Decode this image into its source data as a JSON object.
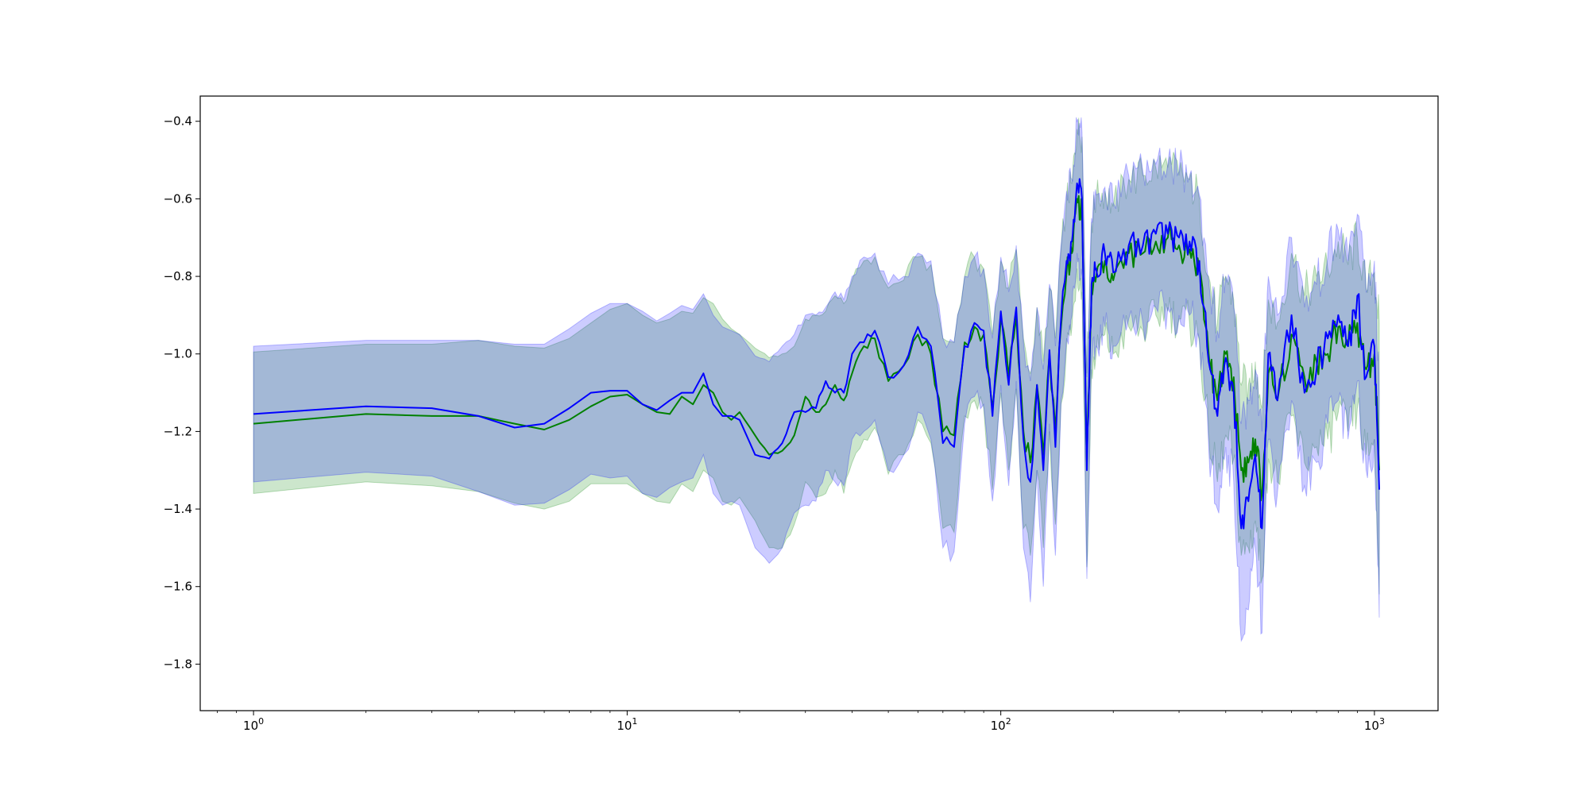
{
  "chart_data": {
    "type": "line",
    "title": "",
    "xlabel": "",
    "ylabel": "",
    "x_scale": "log",
    "xlim": [
      0.72,
      1480
    ],
    "ylim": [
      -1.92,
      -0.335
    ],
    "grid": false,
    "legend": "none",
    "x_ticks": [
      {
        "value": 1,
        "base": "10",
        "exp": "0"
      },
      {
        "value": 10,
        "base": "10",
        "exp": "1"
      },
      {
        "value": 100,
        "base": "10",
        "exp": "2"
      },
      {
        "value": 1000,
        "base": "10",
        "exp": "3"
      }
    ],
    "y_ticks": [
      {
        "value": -0.4,
        "label": "−0.4"
      },
      {
        "value": -0.6,
        "label": "−0.6"
      },
      {
        "value": -0.8,
        "label": "−0.8"
      },
      {
        "value": -1.0,
        "label": "−1.0"
      },
      {
        "value": -1.2,
        "label": "−1.2"
      },
      {
        "value": -1.4,
        "label": "−1.4"
      },
      {
        "value": -1.6,
        "label": "−1.6"
      },
      {
        "value": -1.8,
        "label": "−1.8"
      }
    ],
    "series": [
      {
        "color": "#008000",
        "band_color": "#008000",
        "band_opacity": 0.2,
        "x": [
          1,
          2,
          3,
          4,
          5,
          6,
          7,
          8,
          9,
          10,
          11,
          12,
          13,
          14,
          15,
          16,
          17,
          18,
          19,
          20,
          22,
          24,
          26,
          28,
          30,
          32,
          34,
          36,
          38,
          40,
          43,
          46,
          50,
          55,
          60,
          65,
          70,
          75,
          80,
          85,
          90,
          95,
          100,
          105,
          110,
          115,
          120,
          125,
          130,
          135,
          140,
          145,
          150,
          155,
          160,
          165,
          170,
          175,
          180,
          190,
          200,
          220,
          240,
          260,
          280,
          300,
          320,
          340,
          360,
          380,
          400,
          420,
          440,
          460,
          480,
          500,
          520,
          550,
          600,
          650,
          700,
          750,
          800,
          850,
          900,
          950,
          1000,
          1030
        ],
        "y": [
          -1.18,
          -1.155,
          -1.16,
          -1.16,
          -1.18,
          -1.195,
          -1.17,
          -1.135,
          -1.11,
          -1.105,
          -1.13,
          -1.15,
          -1.155,
          -1.11,
          -1.13,
          -1.08,
          -1.1,
          -1.15,
          -1.17,
          -1.15,
          -1.21,
          -1.26,
          -1.25,
          -1.21,
          -1.11,
          -1.15,
          -1.13,
          -1.08,
          -1.12,
          -1.05,
          -0.98,
          -0.96,
          -1.07,
          -1.03,
          -0.95,
          -1.0,
          -1.2,
          -1.21,
          -0.97,
          -0.93,
          -0.95,
          -1.14,
          -0.91,
          -1.06,
          -0.9,
          -1.2,
          -1.28,
          -1.08,
          -1.26,
          -1.0,
          -1.2,
          -0.93,
          -0.79,
          -0.74,
          -0.6,
          -0.64,
          -1.28,
          -0.85,
          -0.8,
          -0.76,
          -0.81,
          -0.74,
          -0.74,
          -0.71,
          -0.7,
          -0.72,
          -0.73,
          -0.78,
          -1.0,
          -1.12,
          -1.0,
          -1.06,
          -1.3,
          -1.28,
          -1.22,
          -1.36,
          -1.05,
          -1.12,
          -0.95,
          -1.06,
          -1.02,
          -1.0,
          -0.93,
          -0.98,
          -0.92,
          -1.04,
          -1.0,
          -1.3
        ],
        "upper": [
          -0.995,
          -0.975,
          -0.975,
          -0.965,
          -0.98,
          -0.985,
          -0.96,
          -0.92,
          -0.885,
          -0.87,
          -0.9,
          -0.92,
          -0.91,
          -0.89,
          -0.895,
          -0.855,
          -0.87,
          -0.91,
          -0.935,
          -0.95,
          -0.985,
          -1.01,
          -1.0,
          -0.98,
          -0.91,
          -0.9,
          -0.89,
          -0.85,
          -0.87,
          -0.81,
          -0.76,
          -0.75,
          -0.83,
          -0.81,
          -0.75,
          -0.77,
          -0.96,
          -0.97,
          -0.8,
          -0.75,
          -0.78,
          -0.95,
          -0.76,
          -0.83,
          -0.73,
          -0.96,
          -1.05,
          -0.88,
          -1.02,
          -0.83,
          -0.96,
          -0.73,
          -0.6,
          -0.56,
          -0.42,
          -0.44,
          -1.05,
          -0.66,
          -0.6,
          -0.58,
          -0.62,
          -0.55,
          -0.54,
          -0.52,
          -0.52,
          -0.54,
          -0.55,
          -0.6,
          -0.8,
          -0.92,
          -0.8,
          -0.86,
          -1.08,
          -1.08,
          -1.02,
          -1.14,
          -0.86,
          -0.92,
          -0.74,
          -0.85,
          -0.8,
          -0.78,
          -0.71,
          -0.77,
          -0.7,
          -0.83,
          -0.79,
          -0.92
        ],
        "lower": [
          -1.36,
          -1.33,
          -1.34,
          -1.355,
          -1.385,
          -1.4,
          -1.38,
          -1.335,
          -1.335,
          -1.335,
          -1.36,
          -1.38,
          -1.385,
          -1.335,
          -1.355,
          -1.3,
          -1.32,
          -1.38,
          -1.39,
          -1.37,
          -1.43,
          -1.5,
          -1.5,
          -1.44,
          -1.33,
          -1.37,
          -1.36,
          -1.3,
          -1.36,
          -1.28,
          -1.22,
          -1.19,
          -1.31,
          -1.26,
          -1.17,
          -1.23,
          -1.45,
          -1.46,
          -1.16,
          -1.12,
          -1.14,
          -1.35,
          -1.1,
          -1.3,
          -1.09,
          -1.45,
          -1.52,
          -1.3,
          -1.5,
          -1.2,
          -1.44,
          -1.13,
          -0.98,
          -0.93,
          -0.78,
          -0.84,
          -1.55,
          -1.04,
          -1.0,
          -0.95,
          -1.0,
          -0.93,
          -0.94,
          -0.9,
          -0.89,
          -0.91,
          -0.92,
          -0.97,
          -1.2,
          -1.33,
          -1.21,
          -1.27,
          -1.52,
          -1.5,
          -1.43,
          -1.58,
          -1.27,
          -1.33,
          -1.16,
          -1.28,
          -1.24,
          -1.22,
          -1.15,
          -1.2,
          -1.14,
          -1.26,
          -1.22,
          -1.62
        ]
      },
      {
        "color": "#0000ff",
        "band_color": "#0000ff",
        "band_opacity": 0.2,
        "x": [
          1,
          2,
          3,
          4,
          5,
          6,
          7,
          8,
          9,
          10,
          11,
          12,
          13,
          14,
          15,
          16,
          17,
          18,
          19,
          20,
          22,
          24,
          26,
          28,
          30,
          32,
          34,
          36,
          38,
          40,
          43,
          46,
          50,
          55,
          60,
          65,
          70,
          75,
          80,
          85,
          90,
          95,
          100,
          105,
          110,
          115,
          120,
          125,
          130,
          135,
          140,
          145,
          150,
          155,
          160,
          165,
          170,
          175,
          180,
          190,
          200,
          220,
          240,
          260,
          280,
          300,
          320,
          340,
          360,
          380,
          400,
          420,
          440,
          460,
          480,
          500,
          520,
          550,
          600,
          650,
          700,
          750,
          800,
          850,
          900,
          950,
          1000,
          1030
        ],
        "y": [
          -1.155,
          -1.135,
          -1.14,
          -1.16,
          -1.19,
          -1.18,
          -1.14,
          -1.1,
          -1.095,
          -1.095,
          -1.13,
          -1.145,
          -1.12,
          -1.1,
          -1.1,
          -1.05,
          -1.13,
          -1.16,
          -1.16,
          -1.17,
          -1.26,
          -1.27,
          -1.23,
          -1.15,
          -1.15,
          -1.14,
          -1.07,
          -1.1,
          -1.1,
          -1.0,
          -0.97,
          -0.94,
          -1.06,
          -1.03,
          -0.93,
          -0.98,
          -1.23,
          -1.24,
          -0.98,
          -0.92,
          -0.94,
          -1.16,
          -0.89,
          -1.08,
          -0.88,
          -1.22,
          -1.33,
          -1.08,
          -1.3,
          -0.99,
          -1.24,
          -0.91,
          -0.76,
          -0.71,
          -0.56,
          -0.6,
          -1.3,
          -0.82,
          -0.78,
          -0.74,
          -0.79,
          -0.72,
          -0.72,
          -0.69,
          -0.69,
          -0.7,
          -0.71,
          -0.76,
          -1.02,
          -1.16,
          -1.01,
          -1.1,
          -1.45,
          -1.38,
          -1.26,
          -1.45,
          -1.0,
          -1.12,
          -0.9,
          -1.1,
          -1.04,
          -0.96,
          -0.9,
          -0.98,
          -0.85,
          -1.06,
          -0.98,
          -1.35
        ],
        "upper": [
          -0.98,
          -0.965,
          -0.965,
          -0.965,
          -0.975,
          -0.975,
          -0.935,
          -0.895,
          -0.87,
          -0.87,
          -0.89,
          -0.915,
          -0.895,
          -0.875,
          -0.885,
          -0.845,
          -0.9,
          -0.93,
          -0.94,
          -0.95,
          -1.005,
          -1.02,
          -0.98,
          -0.95,
          -0.9,
          -0.9,
          -0.88,
          -0.84,
          -0.86,
          -0.8,
          -0.75,
          -0.74,
          -0.82,
          -0.8,
          -0.74,
          -0.76,
          -0.96,
          -0.97,
          -0.8,
          -0.75,
          -0.78,
          -0.96,
          -0.75,
          -0.84,
          -0.72,
          -0.97,
          -1.07,
          -0.88,
          -1.04,
          -0.82,
          -0.98,
          -0.72,
          -0.58,
          -0.55,
          -0.4,
          -0.43,
          -1.06,
          -0.65,
          -0.59,
          -0.57,
          -0.61,
          -0.54,
          -0.53,
          -0.51,
          -0.51,
          -0.53,
          -0.54,
          -0.59,
          -0.81,
          -0.94,
          -0.8,
          -0.88,
          -1.18,
          -1.12,
          -1.04,
          -1.2,
          -0.8,
          -0.9,
          -0.7,
          -0.88,
          -0.82,
          -0.75,
          -0.68,
          -0.76,
          -0.64,
          -0.84,
          -0.76,
          -1.1
        ],
        "lower": [
          -1.33,
          -1.305,
          -1.315,
          -1.355,
          -1.39,
          -1.385,
          -1.35,
          -1.31,
          -1.32,
          -1.315,
          -1.36,
          -1.37,
          -1.345,
          -1.33,
          -1.32,
          -1.26,
          -1.36,
          -1.39,
          -1.38,
          -1.39,
          -1.5,
          -1.54,
          -1.5,
          -1.41,
          -1.39,
          -1.38,
          -1.3,
          -1.33,
          -1.34,
          -1.22,
          -1.2,
          -1.17,
          -1.3,
          -1.26,
          -1.15,
          -1.22,
          -1.5,
          -1.51,
          -1.18,
          -1.11,
          -1.13,
          -1.38,
          -1.08,
          -1.34,
          -1.07,
          -1.5,
          -1.64,
          -1.3,
          -1.6,
          -1.18,
          -1.52,
          -1.12,
          -0.96,
          -0.9,
          -0.74,
          -0.8,
          -1.58,
          -1.02,
          -0.98,
          -0.93,
          -0.98,
          -0.91,
          -0.92,
          -0.88,
          -0.88,
          -0.9,
          -0.9,
          -0.96,
          -1.24,
          -1.4,
          -1.24,
          -1.33,
          -1.74,
          -1.66,
          -1.5,
          -1.72,
          -1.22,
          -1.36,
          -1.12,
          -1.34,
          -1.28,
          -1.18,
          -1.12,
          -1.22,
          -1.07,
          -1.3,
          -1.22,
          -1.68
        ]
      }
    ]
  }
}
